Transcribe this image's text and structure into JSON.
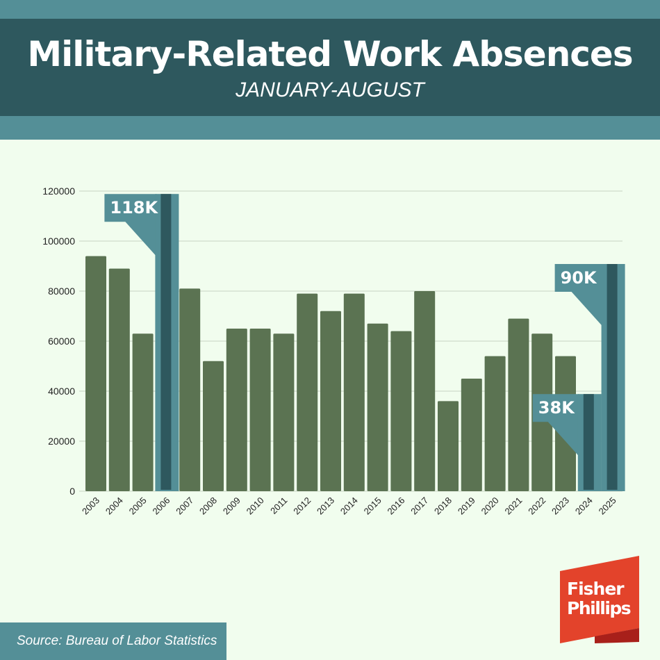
{
  "header": {
    "title": "Military-Related Work Absences",
    "subtitle": "JANUARY-AUGUST"
  },
  "source": "Source: Bureau of Labor Statistics",
  "logo": {
    "line1": "Fisher",
    "line2": "Phillips"
  },
  "colors": {
    "bar": "#5b7352",
    "highlight_outer": "#548f97",
    "highlight_inner": "#2e585e",
    "grid": "#c6d3c2",
    "logo": "#e3432b"
  },
  "chart_data": {
    "type": "bar",
    "categories": [
      "2003",
      "2004",
      "2005",
      "2006",
      "2007",
      "2008",
      "2009",
      "2010",
      "2011",
      "2012",
      "2013",
      "2014",
      "2015",
      "2016",
      "2017",
      "2018",
      "2019",
      "2020",
      "2021",
      "2022",
      "2023",
      "2024",
      "2025"
    ],
    "values": [
      94000,
      89000,
      63000,
      118000,
      81000,
      52000,
      65000,
      65000,
      63000,
      79000,
      72000,
      79000,
      67000,
      64000,
      80000,
      36000,
      45000,
      54000,
      69000,
      63000,
      54000,
      38000,
      90000
    ],
    "ylim": [
      0,
      120000
    ],
    "yticks": [
      "0",
      "20000",
      "40000",
      "60000",
      "80000",
      "100000",
      "120000"
    ],
    "grid": true,
    "highlights": [
      {
        "year": "2006",
        "label": "118K"
      },
      {
        "year": "2024",
        "label": "38K"
      },
      {
        "year": "2025",
        "label": "90K"
      }
    ]
  }
}
